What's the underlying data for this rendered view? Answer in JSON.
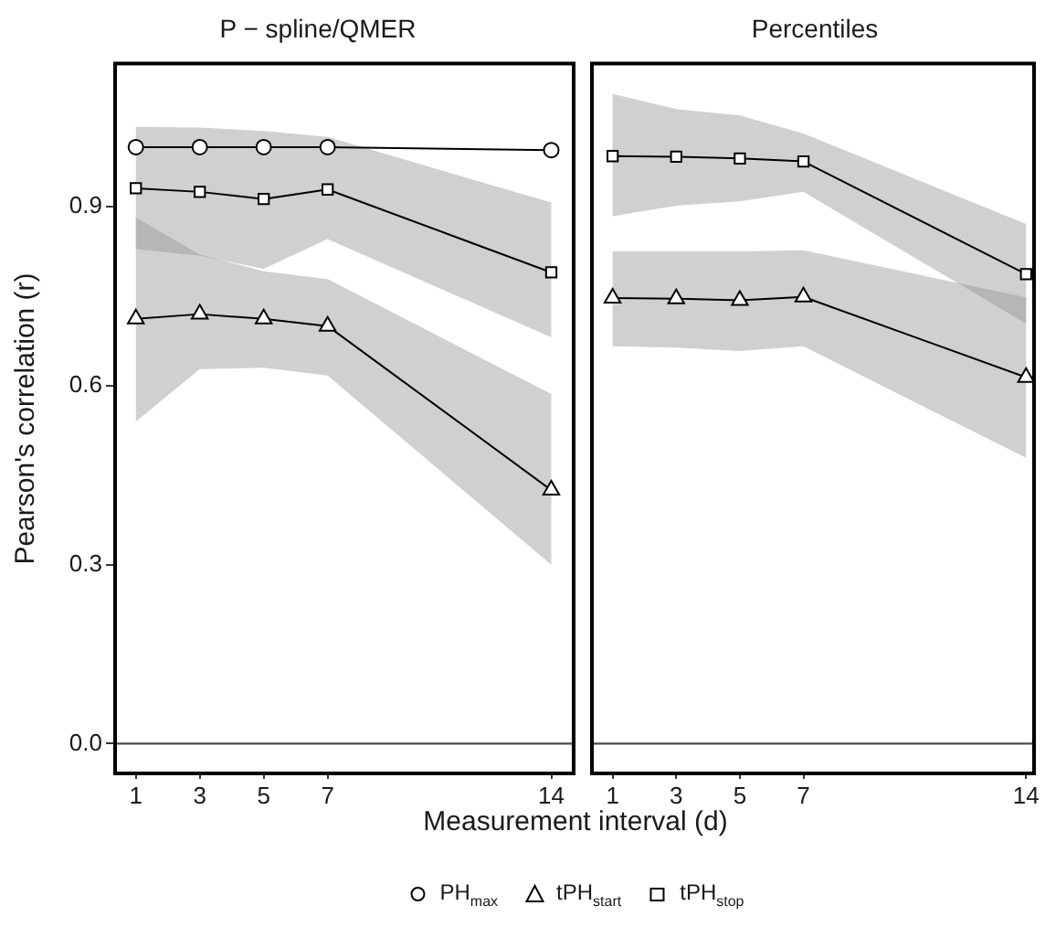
{
  "chart_data": [
    {
      "type": "line",
      "title": "P − spline/QMER",
      "ylabel": "Pearson's correlation (r)",
      "xlabel": "Measurement interval (d)",
      "x": [
        1,
        3,
        5,
        7,
        14
      ],
      "xlim": [
        0.35,
        14.7
      ],
      "xticks": [
        1,
        3,
        5,
        7,
        14
      ],
      "ylim": [
        -0.05,
        1.14
      ],
      "yticks": [
        {
          "value": 0,
          "label": "0.0"
        },
        {
          "value": 0.3,
          "label": "0.3"
        },
        {
          "value": 0.6,
          "label": "0.6"
        },
        {
          "value": 0.9,
          "label": "0.9"
        }
      ],
      "grid": false,
      "legend": "bottom",
      "ref_lines": [
        {
          "axis": "y",
          "value": 0,
          "color": "#4d4d4d"
        }
      ],
      "series": [
        {
          "name": "PH$_{max}$",
          "color": "#000000",
          "marker": "circle",
          "values": [
            1.0,
            1.0,
            1.0,
            1.0,
            0.995
          ]
        },
        {
          "name": "tPH$_{start}$",
          "color": "#000000",
          "marker": "triangle",
          "values": [
            0.712,
            0.72,
            0.712,
            0.7,
            0.425
          ],
          "lower": [
            0.54,
            0.628,
            0.63,
            0.617,
            0.3
          ],
          "upper": [
            0.882,
            0.82,
            0.792,
            0.779,
            0.586
          ]
        },
        {
          "name": "tPH$_{stop}$",
          "color": "#000000",
          "marker": "square",
          "values": [
            0.931,
            0.925,
            0.913,
            0.929,
            0.79
          ],
          "lower": [
            0.829,
            0.818,
            0.796,
            0.846,
            0.681
          ],
          "upper": [
            1.034,
            1.033,
            1.027,
            1.017,
            0.907
          ]
        }
      ]
    },
    {
      "type": "line",
      "title": "Percentiles",
      "x": [
        1,
        3,
        5,
        7,
        14
      ],
      "xlim": [
        0.35,
        14.25
      ],
      "xticks": [
        1,
        3,
        5,
        7,
        14
      ],
      "ylim": [
        -0.05,
        1.14
      ],
      "grid": false,
      "tick_labels": "x",
      "ref_lines": [
        {
          "axis": "y",
          "value": 0,
          "color": "#4d4d4d"
        }
      ],
      "series": [
        {
          "color": "#000000",
          "marker": "triangle",
          "values": [
            0.747,
            0.746,
            0.743,
            0.749,
            0.614
          ],
          "lower": [
            0.666,
            0.664,
            0.658,
            0.666,
            0.479
          ],
          "upper": [
            0.825,
            0.825,
            0.825,
            0.827,
            0.748
          ]
        },
        {
          "color": "#000000",
          "marker": "square",
          "values": [
            0.985,
            0.984,
            0.981,
            0.976,
            0.787
          ],
          "lower": [
            0.884,
            0.902,
            0.909,
            0.925,
            0.704
          ],
          "upper": [
            1.089,
            1.064,
            1.053,
            1.023,
            0.871
          ]
        }
      ]
    }
  ]
}
